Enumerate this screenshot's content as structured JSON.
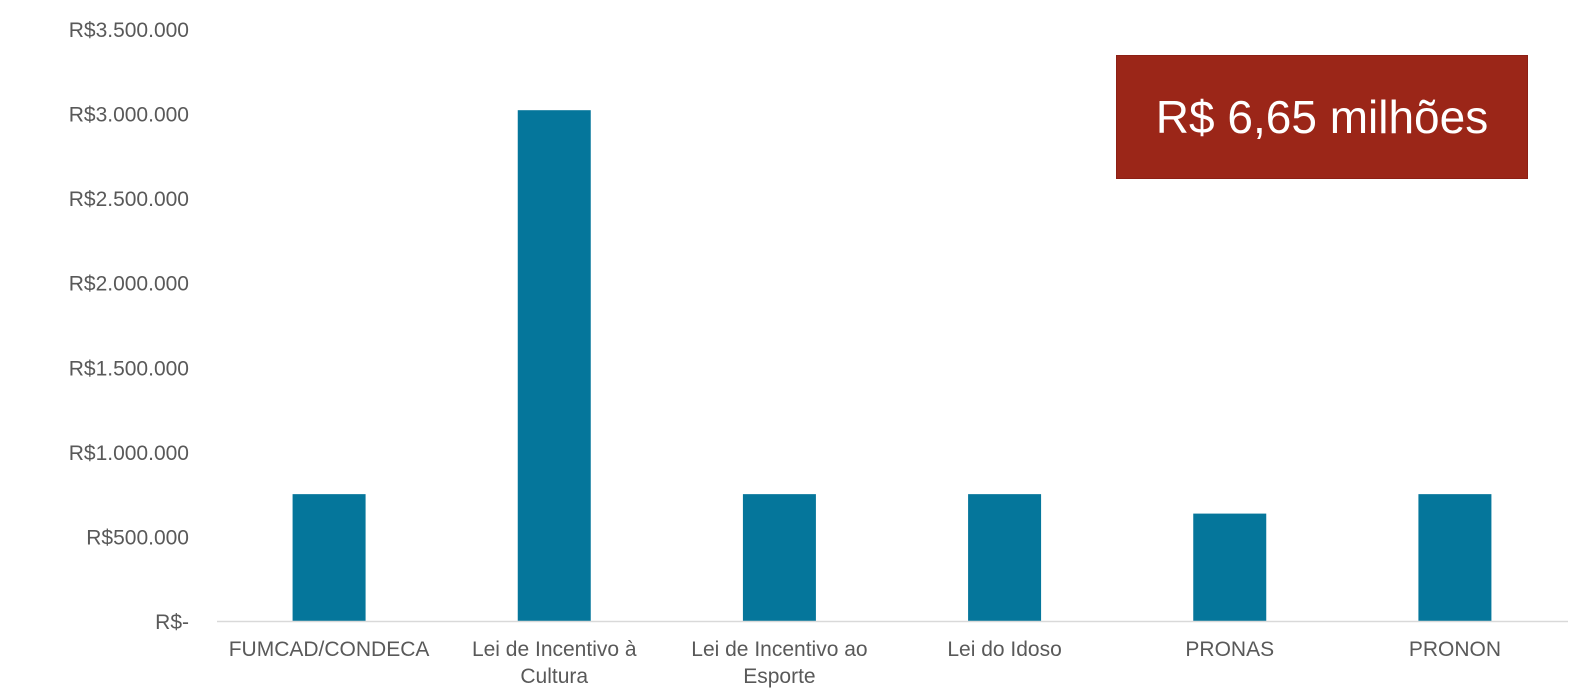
{
  "chart_data": {
    "type": "bar",
    "categories": [
      [
        "FUMCAD/CONDECA"
      ],
      [
        "Lei de Incentivo à",
        "Cultura"
      ],
      [
        "Lei de Incentivo ao",
        "Esporte"
      ],
      [
        "Lei do Idoso"
      ],
      [
        "PRONAS"
      ],
      [
        "PRONON"
      ]
    ],
    "values": [
      750000,
      3020000,
      750000,
      750000,
      635000,
      750000
    ],
    "y_ticks": [
      {
        "value": 0,
        "label": "R$-"
      },
      {
        "value": 500000,
        "label": "R$500.000"
      },
      {
        "value": 1000000,
        "label": "R$1.000.000"
      },
      {
        "value": 1500000,
        "label": "R$1.500.000"
      },
      {
        "value": 2000000,
        "label": "R$2.000.000"
      },
      {
        "value": 2500000,
        "label": "R$2.500.000"
      },
      {
        "value": 3000000,
        "label": "R$3.000.000"
      },
      {
        "value": 3500000,
        "label": "R$3.500.000"
      }
    ],
    "ylim": [
      0,
      3500000
    ],
    "grid": false,
    "bar_color": "#05769b",
    "axis_color": "#d9d9d9"
  },
  "callout": {
    "text": "R$ 6,65 milhões",
    "background": "#9b2618"
  }
}
